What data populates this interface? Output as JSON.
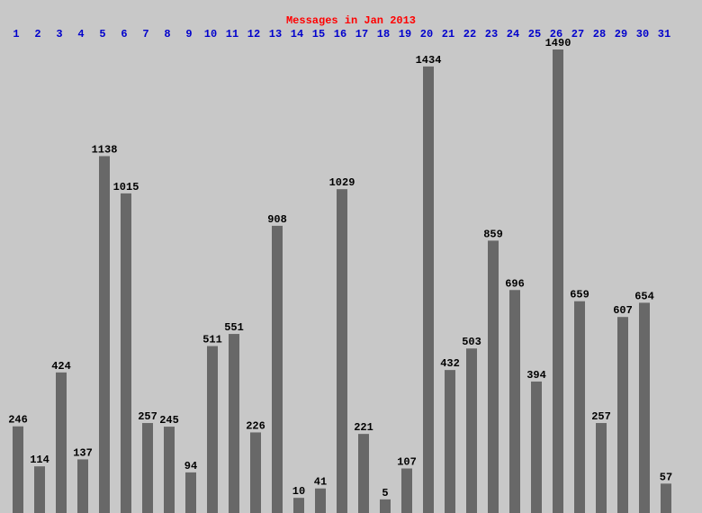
{
  "chart_data": {
    "type": "bar",
    "title": "Messages in Jan 2013",
    "categories": [
      "1",
      "2",
      "3",
      "4",
      "5",
      "6",
      "7",
      "8",
      "9",
      "10",
      "11",
      "12",
      "13",
      "14",
      "15",
      "16",
      "17",
      "18",
      "19",
      "20",
      "21",
      "22",
      "23",
      "24",
      "25",
      "26",
      "27",
      "28",
      "29",
      "30",
      "31"
    ],
    "values": [
      246,
      114,
      424,
      137,
      1138,
      1015,
      257,
      245,
      94,
      511,
      551,
      226,
      908,
      10,
      41,
      1029,
      221,
      5,
      107,
      1434,
      432,
      503,
      859,
      696,
      394,
      1490,
      659,
      257,
      607,
      654,
      57
    ],
    "color": "#686868",
    "title_color": "#ff0000",
    "category_color": "#0000cc",
    "ylim": [
      -40,
      1490
    ]
  }
}
